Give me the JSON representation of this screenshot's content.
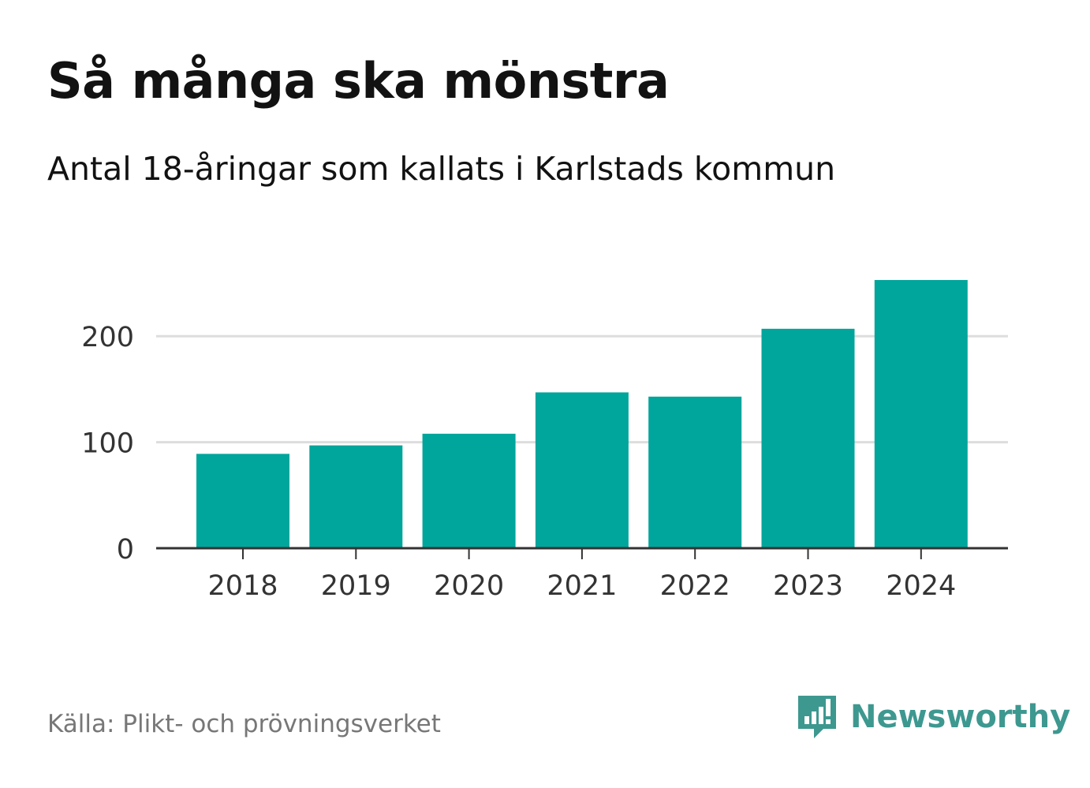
{
  "title": "Så många ska mönstra",
  "subtitle": "Antal 18-åringar som kallats i Karlstads kommun",
  "source": "Källa: Plikt- och prövningsverket",
  "brand": "Newsworthy",
  "colors": {
    "bar": "#00a59b",
    "grid": "#dddddd",
    "axis": "#333333",
    "brand": "#3d9890"
  },
  "chart_data": {
    "type": "bar",
    "categories": [
      "2018",
      "2019",
      "2020",
      "2021",
      "2022",
      "2023",
      "2024"
    ],
    "values": [
      89,
      97,
      108,
      147,
      143,
      207,
      253
    ],
    "yticks": [
      0,
      100,
      200
    ],
    "ylim": [
      0,
      253
    ],
    "xlabel": "",
    "ylabel": "",
    "grid": true,
    "legend": "none"
  }
}
